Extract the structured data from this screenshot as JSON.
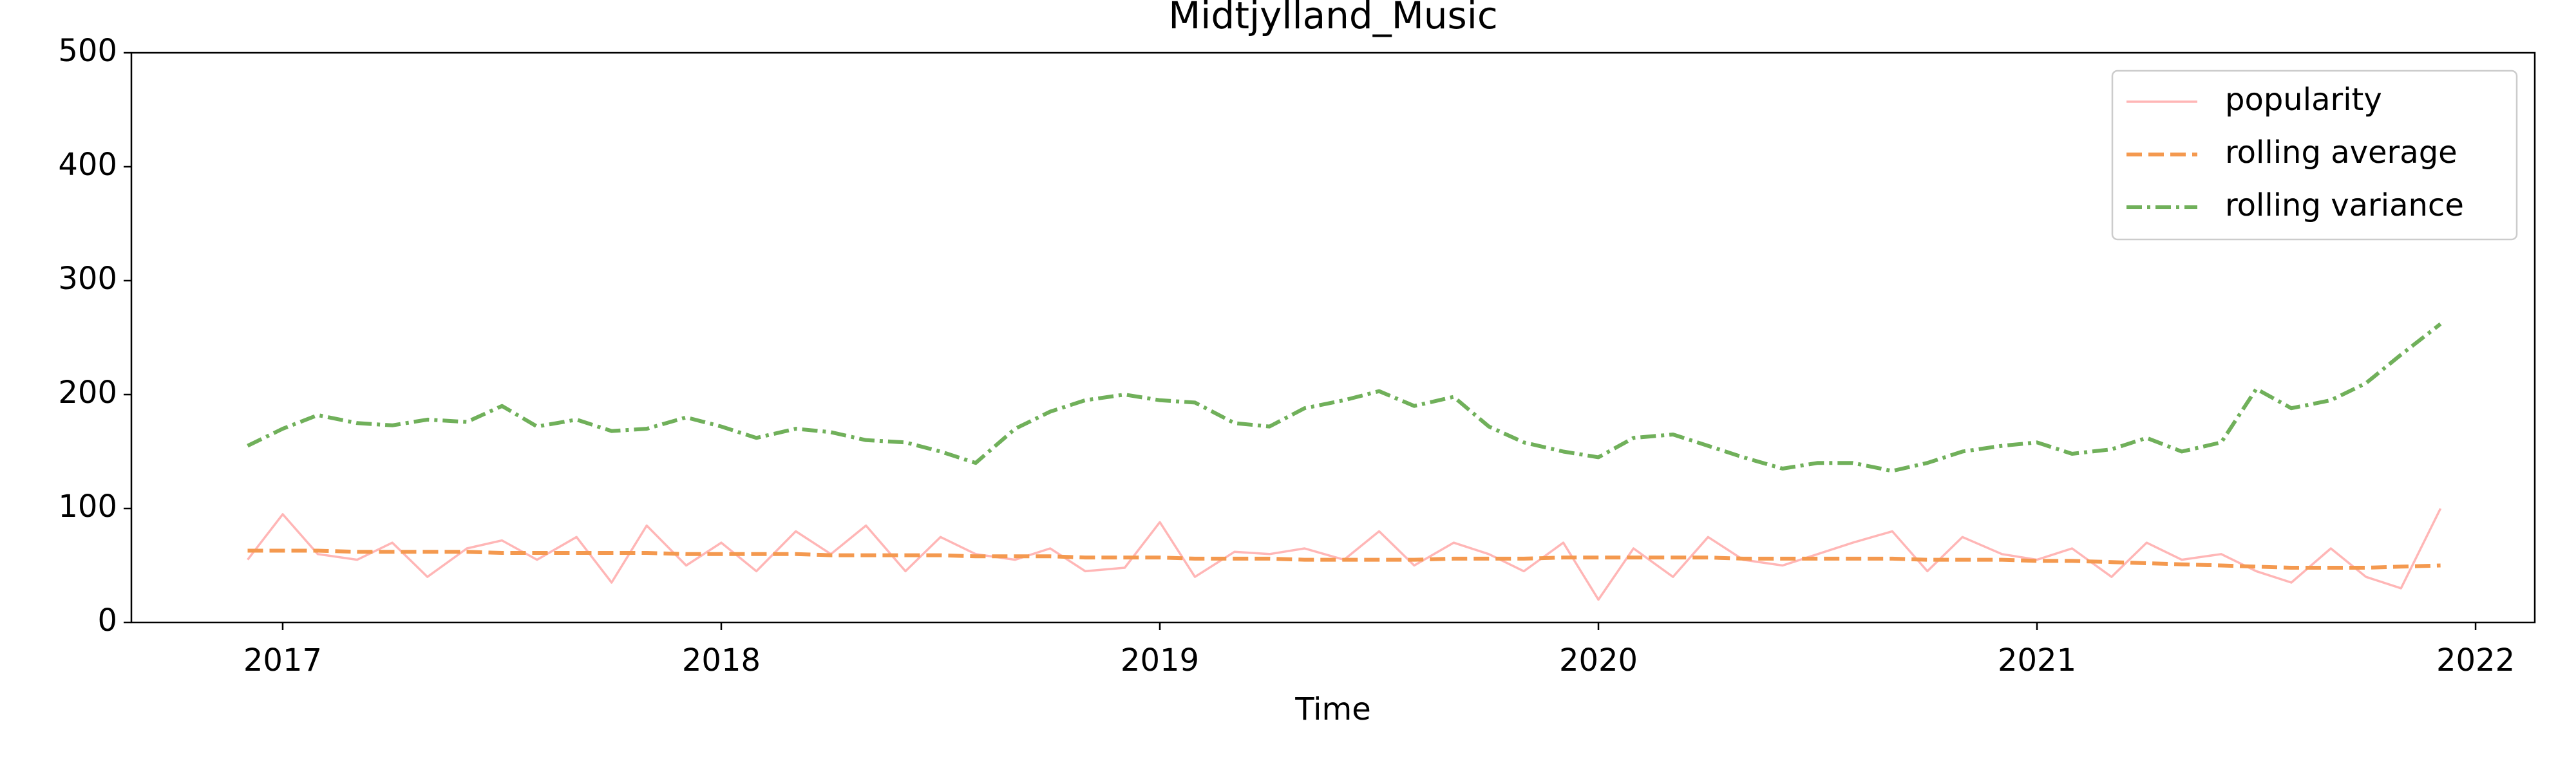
{
  "chart_data": {
    "type": "line",
    "title": "Midtjylland_Music",
    "xlabel": "Time",
    "x": [
      2016.92,
      2017.0,
      2017.08,
      2017.17,
      2017.25,
      2017.33,
      2017.42,
      2017.5,
      2017.58,
      2017.67,
      2017.75,
      2017.83,
      2017.92,
      2018.0,
      2018.08,
      2018.17,
      2018.25,
      2018.33,
      2018.42,
      2018.5,
      2018.58,
      2018.67,
      2018.75,
      2018.83,
      2018.92,
      2019.0,
      2019.08,
      2019.17,
      2019.25,
      2019.33,
      2019.42,
      2019.5,
      2019.58,
      2019.67,
      2019.75,
      2019.83,
      2019.92,
      2020.0,
      2020.08,
      2020.17,
      2020.25,
      2020.33,
      2020.42,
      2020.5,
      2020.58,
      2020.67,
      2020.75,
      2020.83,
      2020.92,
      2021.0,
      2021.08,
      2021.17,
      2021.25,
      2021.33,
      2021.42,
      2021.5,
      2021.58,
      2021.67,
      2021.75,
      2021.83,
      2021.92
    ],
    "series": [
      {
        "name": "popularity",
        "color": "#ffb6b6",
        "linestyle": "solid",
        "values": [
          55,
          95,
          60,
          55,
          70,
          40,
          65,
          72,
          55,
          75,
          35,
          85,
          50,
          70,
          45,
          80,
          60,
          85,
          45,
          75,
          60,
          55,
          65,
          45,
          48,
          88,
          40,
          62,
          60,
          65,
          55,
          80,
          50,
          70,
          60,
          45,
          70,
          20,
          65,
          40,
          75,
          55,
          50,
          60,
          70,
          80,
          45,
          75,
          60,
          55,
          65,
          40,
          70,
          55,
          60,
          45,
          35,
          65,
          40,
          30,
          100
        ]
      },
      {
        "name": "rolling average",
        "color": "#f4994f",
        "linestyle": "dashed",
        "values": [
          63,
          63,
          63,
          62,
          62,
          62,
          62,
          61,
          61,
          61,
          61,
          61,
          60,
          60,
          60,
          60,
          59,
          59,
          59,
          59,
          58,
          58,
          58,
          57,
          57,
          57,
          56,
          56,
          56,
          55,
          55,
          55,
          55,
          56,
          56,
          56,
          57,
          57,
          57,
          57,
          57,
          56,
          56,
          56,
          56,
          56,
          55,
          55,
          55,
          54,
          54,
          53,
          52,
          51,
          50,
          49,
          48,
          48,
          48,
          49,
          50
        ]
      },
      {
        "name": "rolling variance",
        "color": "#70b05a",
        "linestyle": "dashdot",
        "values": [
          155,
          170,
          182,
          175,
          173,
          178,
          176,
          190,
          172,
          178,
          168,
          170,
          180,
          172,
          162,
          170,
          167,
          160,
          158,
          150,
          140,
          170,
          185,
          195,
          200,
          195,
          193,
          175,
          172,
          188,
          195,
          203,
          190,
          198,
          172,
          158,
          150,
          145,
          162,
          165,
          155,
          145,
          135,
          140,
          140,
          133,
          140,
          150,
          155,
          158,
          148,
          152,
          162,
          150,
          158,
          205,
          188,
          195,
          210,
          235,
          262
        ]
      }
    ],
    "xlim": [
      2016.655,
      2022.135
    ],
    "xticks": [
      2017,
      2018,
      2019,
      2020,
      2021,
      2022
    ],
    "ylim": [
      0,
      500
    ],
    "yticks": [
      0,
      100,
      200,
      300,
      400,
      500
    ],
    "grid": false,
    "legend": "upper right"
  }
}
